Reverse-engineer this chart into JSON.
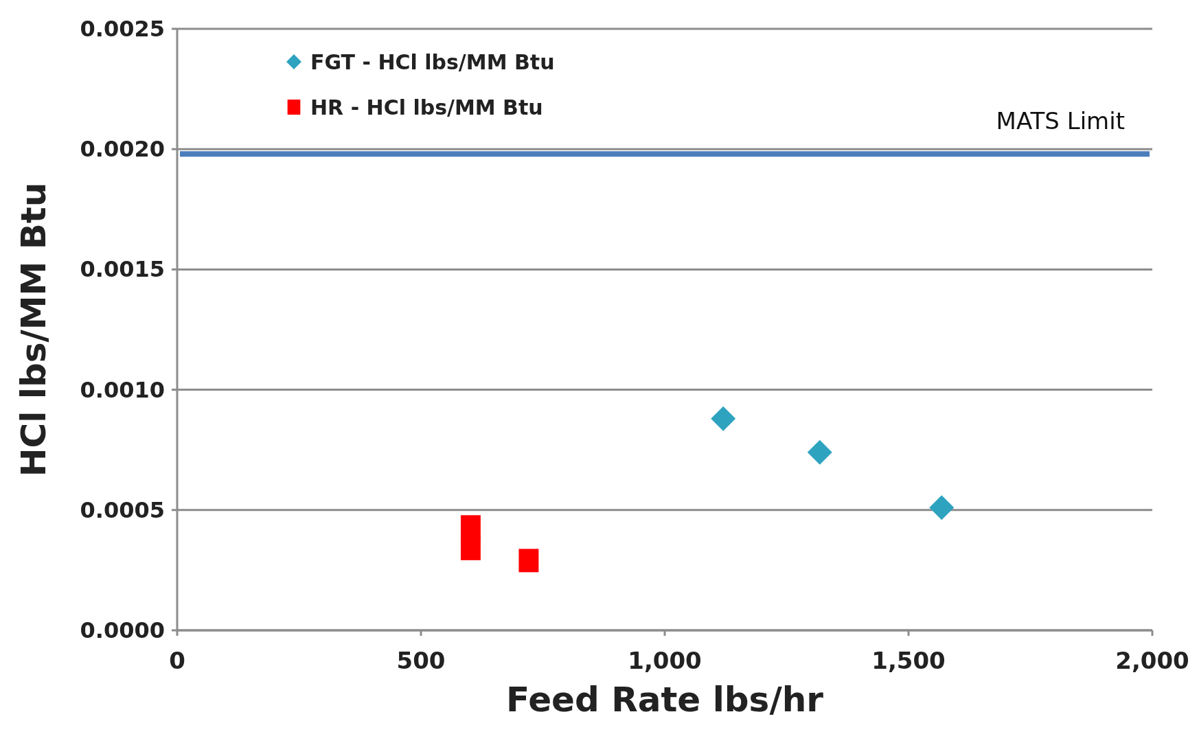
{
  "chart_data": {
    "type": "scatter",
    "xlabel": "Feed Rate lbs/hr",
    "ylabel": "HCl lbs/MM Btu",
    "xlim": [
      0,
      2000
    ],
    "xticks": [
      0,
      500,
      {
        "value": 1000,
        "label": "1,000"
      },
      {
        "value": 1500,
        "label": "1,500"
      },
      {
        "value": 2000,
        "label": "2,000"
      }
    ],
    "ylim": [
      0,
      0.0025
    ],
    "yticks": [
      {
        "value": 0,
        "label": "0.0000"
      },
      {
        "value": 0.0005,
        "label": "0.0005"
      },
      {
        "value": 0.001,
        "label": "0.0010"
      },
      {
        "value": 0.0015,
        "label": "0.0015"
      },
      {
        "value": 0.002,
        "label": "0.0020"
      },
      {
        "value": 0.0025,
        "label": "0.0025"
      }
    ],
    "grid": "y",
    "legend": "top left",
    "series": [
      {
        "name": "FGT - HCl lbs/MM Btu",
        "color": "#2ea3c0",
        "marker": "diamond",
        "x": [
          1120,
          1318,
          1568
        ],
        "values": [
          0.00088,
          0.00074,
          0.00051
        ]
      },
      {
        "name": "HR - HCl lbs/MM Btu",
        "color": "#ff0000",
        "marker": "square",
        "x": [
          602,
          602,
          721
        ],
        "values": [
          0.00043,
          0.00034,
          0.00029
        ]
      }
    ],
    "ref_lines": [
      {
        "axis": "y",
        "value": 0.00198,
        "label": "MATS Limit",
        "color": "#4a7ebb"
      }
    ]
  }
}
